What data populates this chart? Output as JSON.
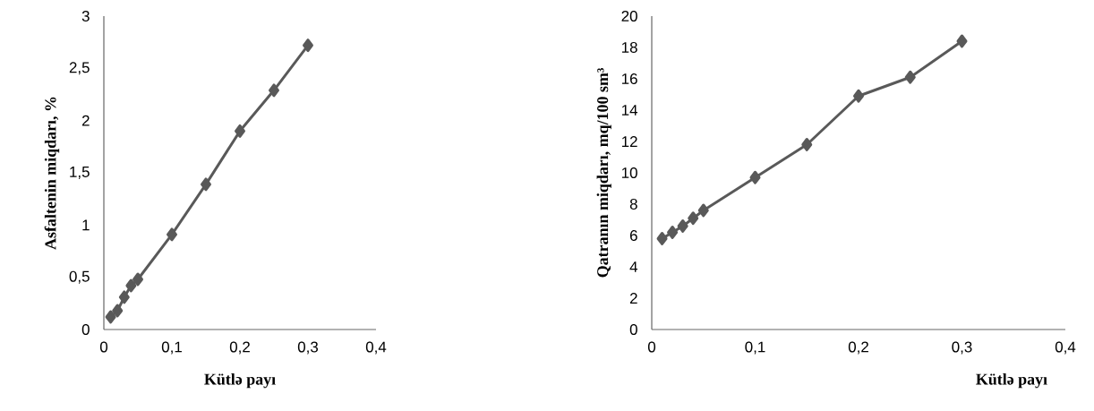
{
  "chart_data": [
    {
      "type": "line",
      "ylabel": "Asfaltenin miqdarı, %",
      "xlabel": "Kütlə payı",
      "x": [
        0.01,
        0.02,
        0.03,
        0.04,
        0.05,
        0.1,
        0.15,
        0.2,
        0.25,
        0.3
      ],
      "series": [
        {
          "color": "#595959",
          "values": [
            0.12,
            0.18,
            0.31,
            0.42,
            0.48,
            0.91,
            1.39,
            1.9,
            2.29,
            2.72
          ]
        }
      ],
      "xlim": [
        0,
        0.4
      ],
      "xticks": [
        0,
        {
          "value": 0.1,
          "label": "0,1"
        },
        {
          "value": 0.2,
          "label": "0,2"
        },
        {
          "value": 0.3,
          "label": "0,3"
        },
        {
          "value": 0.4,
          "label": "0,4"
        }
      ],
      "ylim": [
        0,
        3
      ],
      "yticks": [
        0,
        {
          "value": 0.5,
          "label": "0,5"
        },
        1,
        {
          "value": 1.5,
          "label": "1,5"
        },
        2,
        {
          "value": 2.5,
          "label": "2,5"
        },
        3
      ],
      "marker": "diamond"
    },
    {
      "type": "line",
      "ylabel": "Qatranın miqdarı, mq/100 sm³",
      "xlabel": "Kütlə payı",
      "x": [
        0.01,
        0.02,
        0.03,
        0.04,
        0.05,
        0.1,
        0.15,
        0.2,
        0.25,
        0.3
      ],
      "series": [
        {
          "color": "#595959",
          "values": [
            5.8,
            6.2,
            6.6,
            7.1,
            7.6,
            9.7,
            11.8,
            14.9,
            16.1,
            18.4
          ]
        }
      ],
      "xlim": [
        0,
        0.4
      ],
      "xticks": [
        0,
        {
          "value": 0.1,
          "label": "0,1"
        },
        {
          "value": 0.2,
          "label": "0,2"
        },
        {
          "value": 0.3,
          "label": "0,3"
        },
        {
          "value": 0.4,
          "label": "0,4"
        }
      ],
      "ylim": [
        0,
        20
      ],
      "yticks": [
        0,
        2,
        4,
        6,
        8,
        10,
        12,
        14,
        16,
        18,
        20
      ],
      "marker": "diamond"
    }
  ]
}
